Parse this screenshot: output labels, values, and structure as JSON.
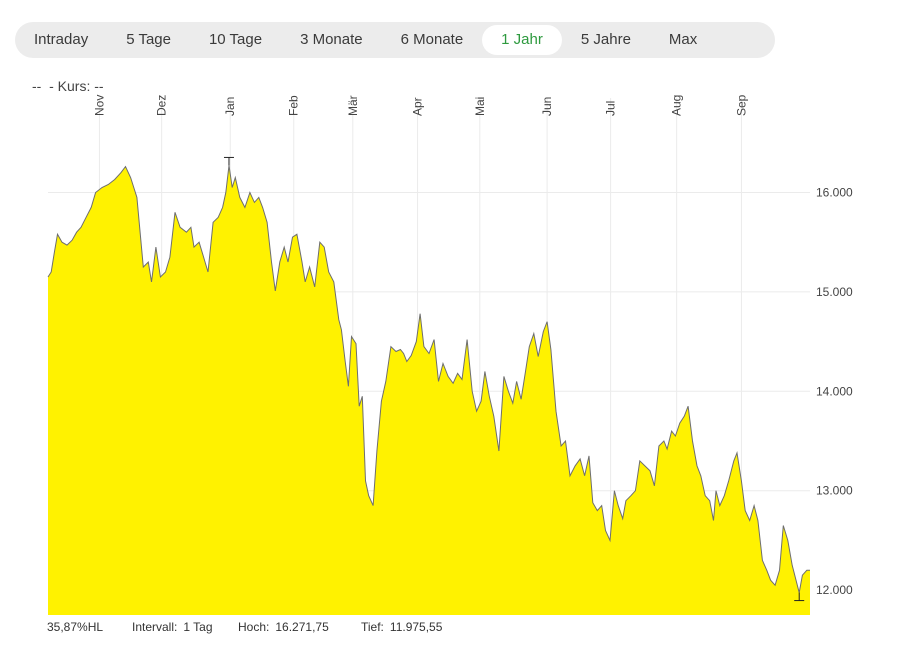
{
  "tabs": [
    {
      "label": "Intraday",
      "active": false
    },
    {
      "label": "5 Tage",
      "active": false
    },
    {
      "label": "10 Tage",
      "active": false
    },
    {
      "label": "3 Monate",
      "active": false
    },
    {
      "label": "6 Monate",
      "active": false
    },
    {
      "label": "1 Jahr",
      "active": true
    },
    {
      "label": "5 Jahre",
      "active": false
    },
    {
      "label": "Max",
      "active": false
    }
  ],
  "legend_text": "--  - Kurs: --",
  "footer": {
    "hl_range": "35,87%HL",
    "interval_label": "Intervall:",
    "interval_value": "1 Tag",
    "high_label": "Hoch:",
    "high_value": "16.271,75",
    "low_label": "Tief:",
    "low_value": "11.975,55"
  },
  "colors": {
    "fill": "#fff200",
    "line": "#6e6e6e",
    "active_tab_text": "#2e9a3f",
    "grid": "#ebebeb"
  },
  "chart_data": {
    "type": "area",
    "title": "",
    "xlabel": "",
    "ylabel": "",
    "x_tick_labels": [
      "Nov",
      "Dez",
      "Jan",
      "Feb",
      "Mär",
      "Apr",
      "Mai",
      "Jun",
      "Jul",
      "Aug",
      "Sep"
    ],
    "y_tick_labels": [
      "12.000",
      "13.000",
      "14.000",
      "15.000",
      "16.000"
    ],
    "y_ticks": [
      12000,
      13000,
      14000,
      15000,
      16000
    ],
    "ylim": [
      11750,
      16950
    ],
    "x_unit": "months from start",
    "xlim": [
      0,
      12
    ],
    "month_ticks": [
      0.81,
      1.79,
      2.87,
      3.87,
      4.8,
      5.82,
      6.8,
      7.86,
      8.86,
      9.9,
      10.92
    ],
    "grid": true,
    "high": {
      "x": 2.85,
      "y": 16271.75
    },
    "low": {
      "x": 11.83,
      "y": 11975.55
    },
    "series": [
      {
        "values": [
          [
            0.0,
            15150
          ],
          [
            0.05,
            15200
          ],
          [
            0.1,
            15400
          ],
          [
            0.15,
            15580
          ],
          [
            0.22,
            15500
          ],
          [
            0.3,
            15470
          ],
          [
            0.38,
            15520
          ],
          [
            0.45,
            15600
          ],
          [
            0.52,
            15650
          ],
          [
            0.6,
            15750
          ],
          [
            0.68,
            15850
          ],
          [
            0.75,
            16000
          ],
          [
            0.85,
            16050
          ],
          [
            0.95,
            16080
          ],
          [
            1.05,
            16130
          ],
          [
            1.15,
            16200
          ],
          [
            1.22,
            16260
          ],
          [
            1.3,
            16150
          ],
          [
            1.4,
            15950
          ],
          [
            1.5,
            15250
          ],
          [
            1.58,
            15300
          ],
          [
            1.63,
            15100
          ],
          [
            1.7,
            15450
          ],
          [
            1.77,
            15150
          ],
          [
            1.85,
            15200
          ],
          [
            1.92,
            15350
          ],
          [
            2.0,
            15800
          ],
          [
            2.08,
            15650
          ],
          [
            2.18,
            15600
          ],
          [
            2.25,
            15650
          ],
          [
            2.3,
            15450
          ],
          [
            2.38,
            15500
          ],
          [
            2.45,
            15350
          ],
          [
            2.52,
            15200
          ],
          [
            2.6,
            15700
          ],
          [
            2.68,
            15750
          ],
          [
            2.75,
            15850
          ],
          [
            2.8,
            16000
          ],
          [
            2.85,
            16271.75
          ],
          [
            2.9,
            16050
          ],
          [
            2.95,
            16150
          ],
          [
            3.02,
            15950
          ],
          [
            3.1,
            15850
          ],
          [
            3.18,
            16000
          ],
          [
            3.25,
            15900
          ],
          [
            3.32,
            15950
          ],
          [
            3.38,
            15850
          ],
          [
            3.45,
            15700
          ],
          [
            3.52,
            15300
          ],
          [
            3.58,
            15010
          ],
          [
            3.65,
            15300
          ],
          [
            3.72,
            15450
          ],
          [
            3.78,
            15300
          ],
          [
            3.85,
            15550
          ],
          [
            3.92,
            15580
          ],
          [
            4.0,
            15300
          ],
          [
            4.05,
            15100
          ],
          [
            4.12,
            15250
          ],
          [
            4.2,
            15050
          ],
          [
            4.28,
            15500
          ],
          [
            4.35,
            15450
          ],
          [
            4.42,
            15200
          ],
          [
            4.5,
            15100
          ],
          [
            4.58,
            14720
          ],
          [
            4.62,
            14620
          ],
          [
            4.68,
            14300
          ],
          [
            4.73,
            14050
          ],
          [
            4.78,
            14550
          ],
          [
            4.85,
            14480
          ],
          [
            4.9,
            13850
          ],
          [
            4.95,
            13950
          ],
          [
            5.0,
            13100
          ],
          [
            5.05,
            12950
          ],
          [
            5.12,
            12850
          ],
          [
            5.18,
            13400
          ],
          [
            5.25,
            13900
          ],
          [
            5.32,
            14100
          ],
          [
            5.4,
            14450
          ],
          [
            5.48,
            14400
          ],
          [
            5.55,
            14420
          ],
          [
            5.6,
            14380
          ],
          [
            5.65,
            14300
          ],
          [
            5.72,
            14360
          ],
          [
            5.8,
            14500
          ],
          [
            5.86,
            14780
          ],
          [
            5.92,
            14450
          ],
          [
            6.0,
            14380
          ],
          [
            6.08,
            14520
          ],
          [
            6.15,
            14100
          ],
          [
            6.22,
            14280
          ],
          [
            6.3,
            14150
          ],
          [
            6.38,
            14080
          ],
          [
            6.45,
            14180
          ],
          [
            6.52,
            14120
          ],
          [
            6.6,
            14520
          ],
          [
            6.68,
            14000
          ],
          [
            6.75,
            13800
          ],
          [
            6.82,
            13900
          ],
          [
            6.88,
            14200
          ],
          [
            6.95,
            13950
          ],
          [
            7.02,
            13750
          ],
          [
            7.1,
            13400
          ],
          [
            7.18,
            14150
          ],
          [
            7.25,
            14000
          ],
          [
            7.32,
            13880
          ],
          [
            7.38,
            14100
          ],
          [
            7.45,
            13920
          ],
          [
            7.52,
            14200
          ],
          [
            7.58,
            14450
          ],
          [
            7.65,
            14580
          ],
          [
            7.72,
            14350
          ],
          [
            7.8,
            14600
          ],
          [
            7.86,
            14700
          ],
          [
            7.92,
            14420
          ],
          [
            8.0,
            13800
          ],
          [
            8.08,
            13450
          ],
          [
            8.15,
            13500
          ],
          [
            8.22,
            13150
          ],
          [
            8.3,
            13250
          ],
          [
            8.38,
            13320
          ],
          [
            8.45,
            13150
          ],
          [
            8.52,
            13350
          ],
          [
            8.58,
            12880
          ],
          [
            8.65,
            12800
          ],
          [
            8.72,
            12850
          ],
          [
            8.78,
            12600
          ],
          [
            8.85,
            12500
          ],
          [
            8.92,
            13000
          ],
          [
            8.98,
            12850
          ],
          [
            9.05,
            12720
          ],
          [
            9.1,
            12900
          ],
          [
            9.18,
            12950
          ],
          [
            9.25,
            13000
          ],
          [
            9.32,
            13300
          ],
          [
            9.4,
            13250
          ],
          [
            9.48,
            13200
          ],
          [
            9.55,
            13050
          ],
          [
            9.62,
            13450
          ],
          [
            9.7,
            13500
          ],
          [
            9.75,
            13420
          ],
          [
            9.82,
            13600
          ],
          [
            9.88,
            13550
          ],
          [
            9.95,
            13680
          ],
          [
            10.02,
            13750
          ],
          [
            10.08,
            13850
          ],
          [
            10.15,
            13500
          ],
          [
            10.22,
            13250
          ],
          [
            10.28,
            13150
          ],
          [
            10.35,
            12950
          ],
          [
            10.42,
            12900
          ],
          [
            10.48,
            12700
          ],
          [
            10.52,
            13000
          ],
          [
            10.58,
            12850
          ],
          [
            10.65,
            12950
          ],
          [
            10.72,
            13100
          ],
          [
            10.8,
            13300
          ],
          [
            10.85,
            13380
          ],
          [
            10.92,
            13100
          ],
          [
            10.98,
            12800
          ],
          [
            11.05,
            12700
          ],
          [
            11.12,
            12850
          ],
          [
            11.18,
            12700
          ],
          [
            11.25,
            12300
          ],
          [
            11.32,
            12200
          ],
          [
            11.38,
            12100
          ],
          [
            11.45,
            12050
          ],
          [
            11.52,
            12200
          ],
          [
            11.58,
            12650
          ],
          [
            11.65,
            12500
          ],
          [
            11.72,
            12250
          ],
          [
            11.83,
            11975.55
          ],
          [
            11.88,
            12150
          ],
          [
            11.95,
            12200
          ],
          [
            12.0,
            12200
          ]
        ]
      }
    ]
  }
}
